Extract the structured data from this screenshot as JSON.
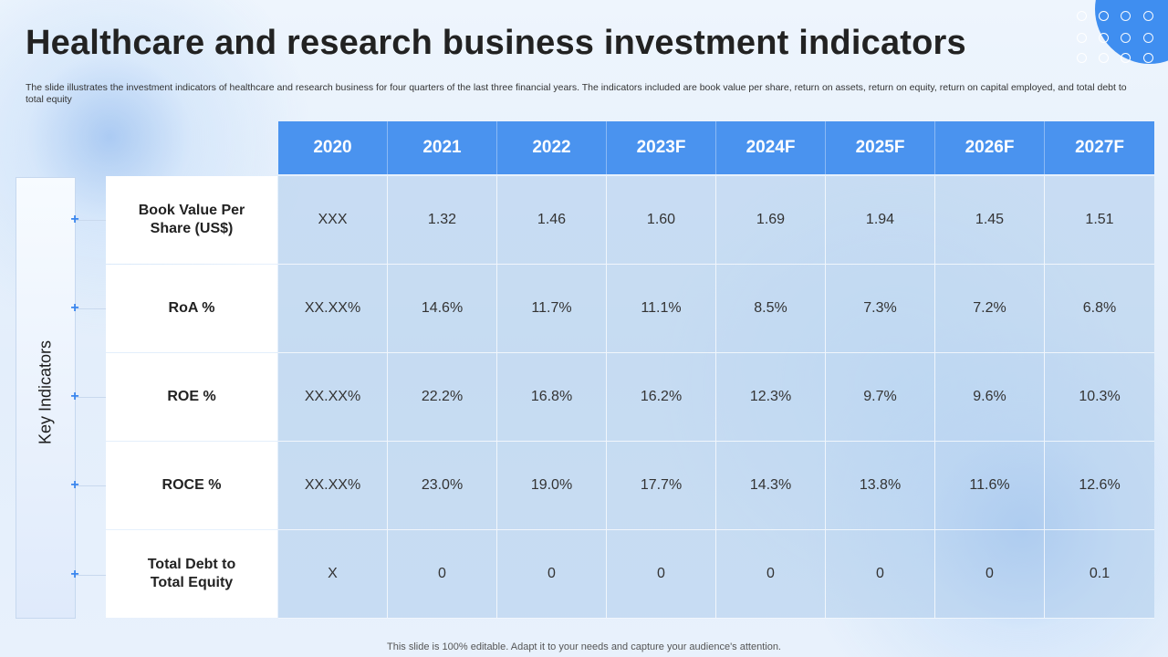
{
  "header": {
    "title": "Healthcare and research business investment indicators",
    "subtitle": "The slide illustrates the investment indicators of healthcare and research business for four quarters of the last three financial years. The indicators included are book value per share, return on assets, return on equity, return on capital employed, and total debt to total equity"
  },
  "side_label": "Key Indicators",
  "table": {
    "years": [
      "2020",
      "2021",
      "2022",
      "2023F",
      "2024F",
      "2025F",
      "2026F",
      "2027F"
    ],
    "rows": [
      {
        "label_line1": "Book Value Per",
        "label_line2": "Share (US$)",
        "values": [
          "XXX",
          "1.32",
          "1.46",
          "1.60",
          "1.69",
          "1.94",
          "1.45",
          "1.51"
        ]
      },
      {
        "label_line1": "RoA %",
        "label_line2": "",
        "values": [
          "XX.XX%",
          "14.6%",
          "11.7%",
          "11.1%",
          "8.5%",
          "7.3%",
          "7.2%",
          "6.8%"
        ]
      },
      {
        "label_line1": "ROE %",
        "label_line2": "",
        "values": [
          "XX.XX%",
          "22.2%",
          "16.8%",
          "16.2%",
          "12.3%",
          "9.7%",
          "9.6%",
          "10.3%"
        ]
      },
      {
        "label_line1": "ROCE %",
        "label_line2": "",
        "values": [
          "XX.XX%",
          "23.0%",
          "19.0%",
          "17.7%",
          "14.3%",
          "13.8%",
          "11.6%",
          "12.6%"
        ]
      },
      {
        "label_line1": "Total Debt to",
        "label_line2": "Total Equity",
        "values": [
          "X",
          "0",
          "0",
          "0",
          "0",
          "0",
          "0",
          "0.1"
        ]
      }
    ]
  },
  "footer": "This slide is 100% editable. Adapt it to your needs and capture your audience's attention.",
  "colors": {
    "accent": "#4a93ef",
    "plus": "#3a86ee"
  }
}
